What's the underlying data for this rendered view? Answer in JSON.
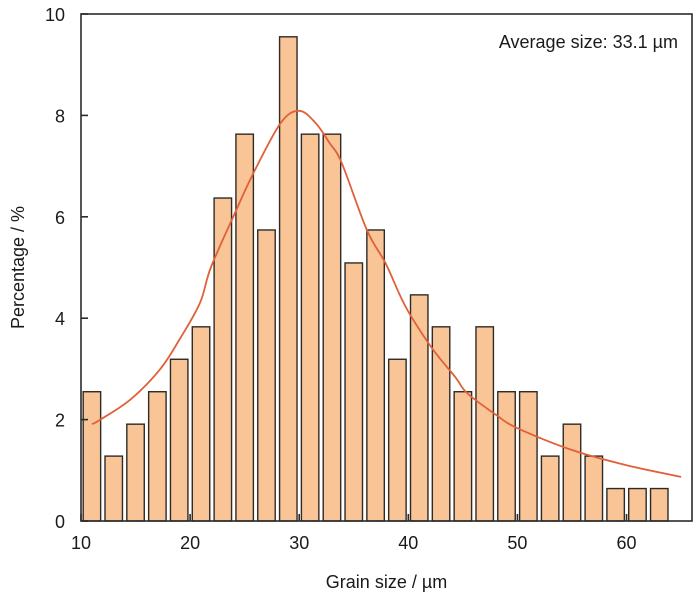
{
  "chart_data": {
    "type": "bar",
    "title": "",
    "xlabel": "Grain size / µm",
    "ylabel": "Percentage / %",
    "xlim": [
      10,
      66
    ],
    "ylim": [
      0,
      10
    ],
    "xticks": [
      10,
      20,
      30,
      40,
      50,
      60
    ],
    "yticks": [
      0,
      2,
      4,
      6,
      8,
      10
    ],
    "grid": false,
    "annotation": "Average size: 33.1 µm",
    "annotation_position": "top-right",
    "bar_width": 1.6,
    "bar_fill": "#F9C597",
    "bar_outline": "#2e2a26",
    "bars": {
      "x": [
        11,
        13,
        15,
        17,
        19,
        21,
        23,
        25,
        27,
        29,
        31,
        33,
        35,
        37,
        39,
        41,
        43,
        45,
        47,
        49,
        51,
        53,
        55,
        57,
        59,
        61,
        63
      ],
      "values": [
        2.55,
        1.28,
        1.91,
        2.55,
        3.19,
        3.83,
        6.37,
        7.63,
        5.74,
        9.55,
        7.63,
        7.63,
        5.09,
        5.74,
        3.19,
        4.46,
        3.83,
        2.55,
        3.83,
        2.55,
        2.55,
        1.28,
        1.91,
        1.28,
        0.64,
        0.64,
        0.64
      ]
    },
    "series": [
      {
        "name": "fit",
        "type": "line",
        "color": "#E0603A",
        "x": [
          11,
          11.7,
          14.5,
          17.2,
          19,
          20.9,
          21.9,
          24.1,
          25.8,
          28.3,
          30,
          31.5,
          32.8,
          33.9,
          36.2,
          37.9,
          39.3,
          40.3,
          42.3,
          44.3,
          45.4,
          48,
          50,
          55,
          60,
          65
        ],
        "y": [
          1.91,
          1.99,
          2.39,
          2.98,
          3.57,
          4.3,
          5.0,
          6.07,
          6.86,
          7.85,
          8.09,
          7.85,
          7.45,
          7.06,
          5.74,
          5.09,
          4.42,
          4.02,
          3.37,
          2.84,
          2.52,
          2.1,
          1.83,
          1.4,
          1.1,
          0.87
        ]
      }
    ]
  }
}
